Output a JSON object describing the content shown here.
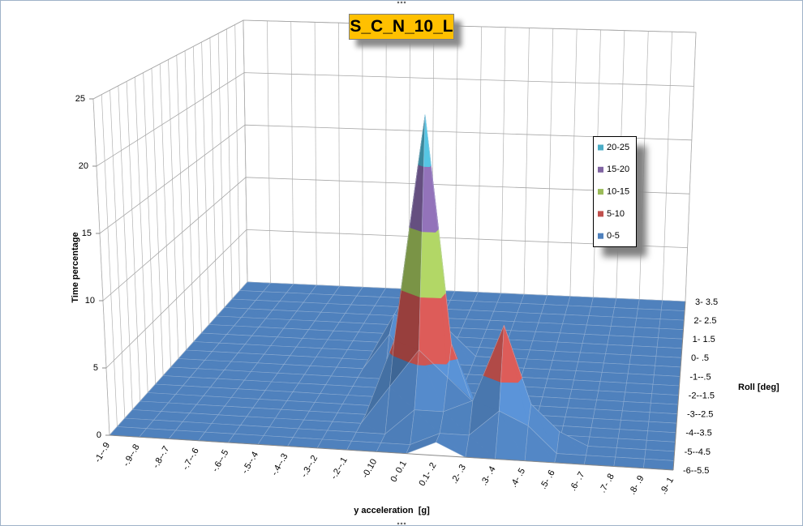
{
  "chart_data": {
    "type": "surface3d",
    "title": "S_C_N_10_L",
    "z_label": "Time percentage",
    "x_label": "y acceleration  [g]",
    "y_label": "Roll [deg]",
    "x_categories": [
      "-1--.9",
      "-.9--.8",
      "-.8--.7",
      "-.7--.6",
      "-.6--.5",
      "-.5--.4",
      "-.4--.3",
      "-.3--.2",
      "-.2--.1",
      "-0.10",
      "0- 0.1",
      "0.1- .2",
      ".2- .3",
      ".3- .4",
      ".4- .5",
      ".5- .6",
      ".6- .7",
      ".7- .8",
      ".8- .9",
      ".9- 1"
    ],
    "y_categories": [
      "-6--5.5",
      null,
      "-5--4.5",
      null,
      "-4--3.5",
      null,
      "-3--2.5",
      null,
      "-2--1.5",
      null,
      "-1--.5",
      null,
      "0- .5",
      null,
      "1- 1.5",
      null,
      "2- 2.5",
      null,
      "3- 3.5"
    ],
    "zlim": [
      0,
      25
    ],
    "zticks": [
      0,
      5,
      10,
      15,
      20,
      25
    ],
    "bands": [
      {
        "name": "0-5",
        "color": "#4f81bd"
      },
      {
        "name": "5-10",
        "color": "#c0504d"
      },
      {
        "name": "10-15",
        "color": "#9bbb59"
      },
      {
        "name": "15-20",
        "color": "#8064a2"
      },
      {
        "name": "20-25",
        "color": "#4bacc6"
      }
    ],
    "values": [
      [
        0,
        0,
        0,
        0,
        0,
        0,
        0,
        0,
        0,
        0,
        0,
        1,
        0,
        0,
        0,
        0,
        0,
        0,
        0,
        0
      ],
      [
        0,
        0,
        0,
        0,
        0,
        0,
        0,
        0,
        0,
        0,
        0,
        1,
        1,
        3,
        2,
        0,
        0,
        0,
        0,
        0
      ],
      [
        0,
        0,
        0,
        0,
        0,
        0,
        0,
        0,
        0,
        0,
        2,
        2,
        3,
        9,
        3,
        1,
        0,
        0,
        0,
        0
      ],
      [
        0,
        0,
        0,
        0,
        0,
        0,
        0,
        0,
        0,
        3,
        6,
        4,
        2,
        4,
        0,
        0,
        0,
        0,
        0,
        0
      ],
      [
        0,
        0,
        0,
        0,
        0,
        0,
        0,
        0,
        0,
        6,
        24,
        6,
        0,
        0,
        0,
        0,
        0,
        0,
        0,
        0
      ],
      [
        0,
        0,
        0,
        0,
        0,
        0,
        0,
        0,
        0,
        4,
        7,
        3,
        0,
        0,
        0,
        0,
        0,
        0,
        0,
        0
      ],
      [
        0,
        0,
        0,
        0,
        0,
        0,
        0,
        0,
        0,
        2,
        3,
        0,
        0,
        0,
        0,
        0,
        0,
        0,
        0,
        0
      ],
      [
        0,
        0,
        0,
        0,
        0,
        0,
        0,
        0,
        0,
        0,
        2,
        0,
        0,
        0,
        0,
        0,
        0,
        0,
        0,
        0
      ],
      [
        0,
        0,
        0,
        0,
        0,
        0,
        0,
        0,
        0,
        2,
        2,
        0,
        0,
        0,
        0,
        0,
        0,
        0,
        0,
        0
      ],
      [
        0,
        0,
        0,
        0,
        0,
        0,
        0,
        0,
        3,
        0,
        0,
        0,
        0,
        0,
        0,
        0,
        0,
        0,
        0,
        0
      ],
      [
        0,
        0,
        0,
        0,
        0,
        0,
        0,
        0,
        4,
        3,
        0,
        0,
        0,
        0,
        0,
        0,
        0,
        0,
        0,
        0
      ],
      [
        0,
        0,
        0,
        0,
        0,
        0,
        0,
        0,
        3,
        0,
        2,
        0,
        0,
        0,
        0,
        0,
        0,
        0,
        0,
        0
      ],
      [
        0,
        0,
        0,
        0,
        0,
        0,
        0,
        0,
        2,
        4,
        0,
        0,
        0,
        0,
        0,
        0,
        0,
        0,
        0,
        0
      ],
      [
        0,
        0,
        0,
        0,
        0,
        0,
        0,
        0,
        2,
        0,
        0,
        0,
        0,
        0,
        0,
        0,
        0,
        0,
        0,
        0
      ],
      [
        0,
        0,
        0,
        0,
        0,
        0,
        0,
        0,
        0,
        0,
        0,
        0,
        0,
        0,
        0,
        0,
        0,
        0,
        0,
        0
      ],
      [
        0,
        0,
        0,
        0,
        0,
        0,
        0,
        0,
        0,
        0,
        0,
        0,
        0,
        0,
        0,
        0,
        0,
        0,
        0,
        0
      ],
      [
        0,
        0,
        0,
        0,
        0,
        0,
        0,
        0,
        0,
        0,
        0,
        0,
        0,
        0,
        0,
        0,
        0,
        0,
        0,
        0
      ],
      [
        0,
        0,
        0,
        0,
        0,
        0,
        0,
        0,
        0,
        0,
        0,
        0,
        0,
        0,
        0,
        0,
        0,
        0,
        0,
        0
      ],
      [
        0,
        0,
        0,
        0,
        0,
        0,
        0,
        0,
        0,
        0,
        0,
        0,
        0,
        0,
        0,
        0,
        0,
        0,
        0,
        0
      ]
    ]
  }
}
